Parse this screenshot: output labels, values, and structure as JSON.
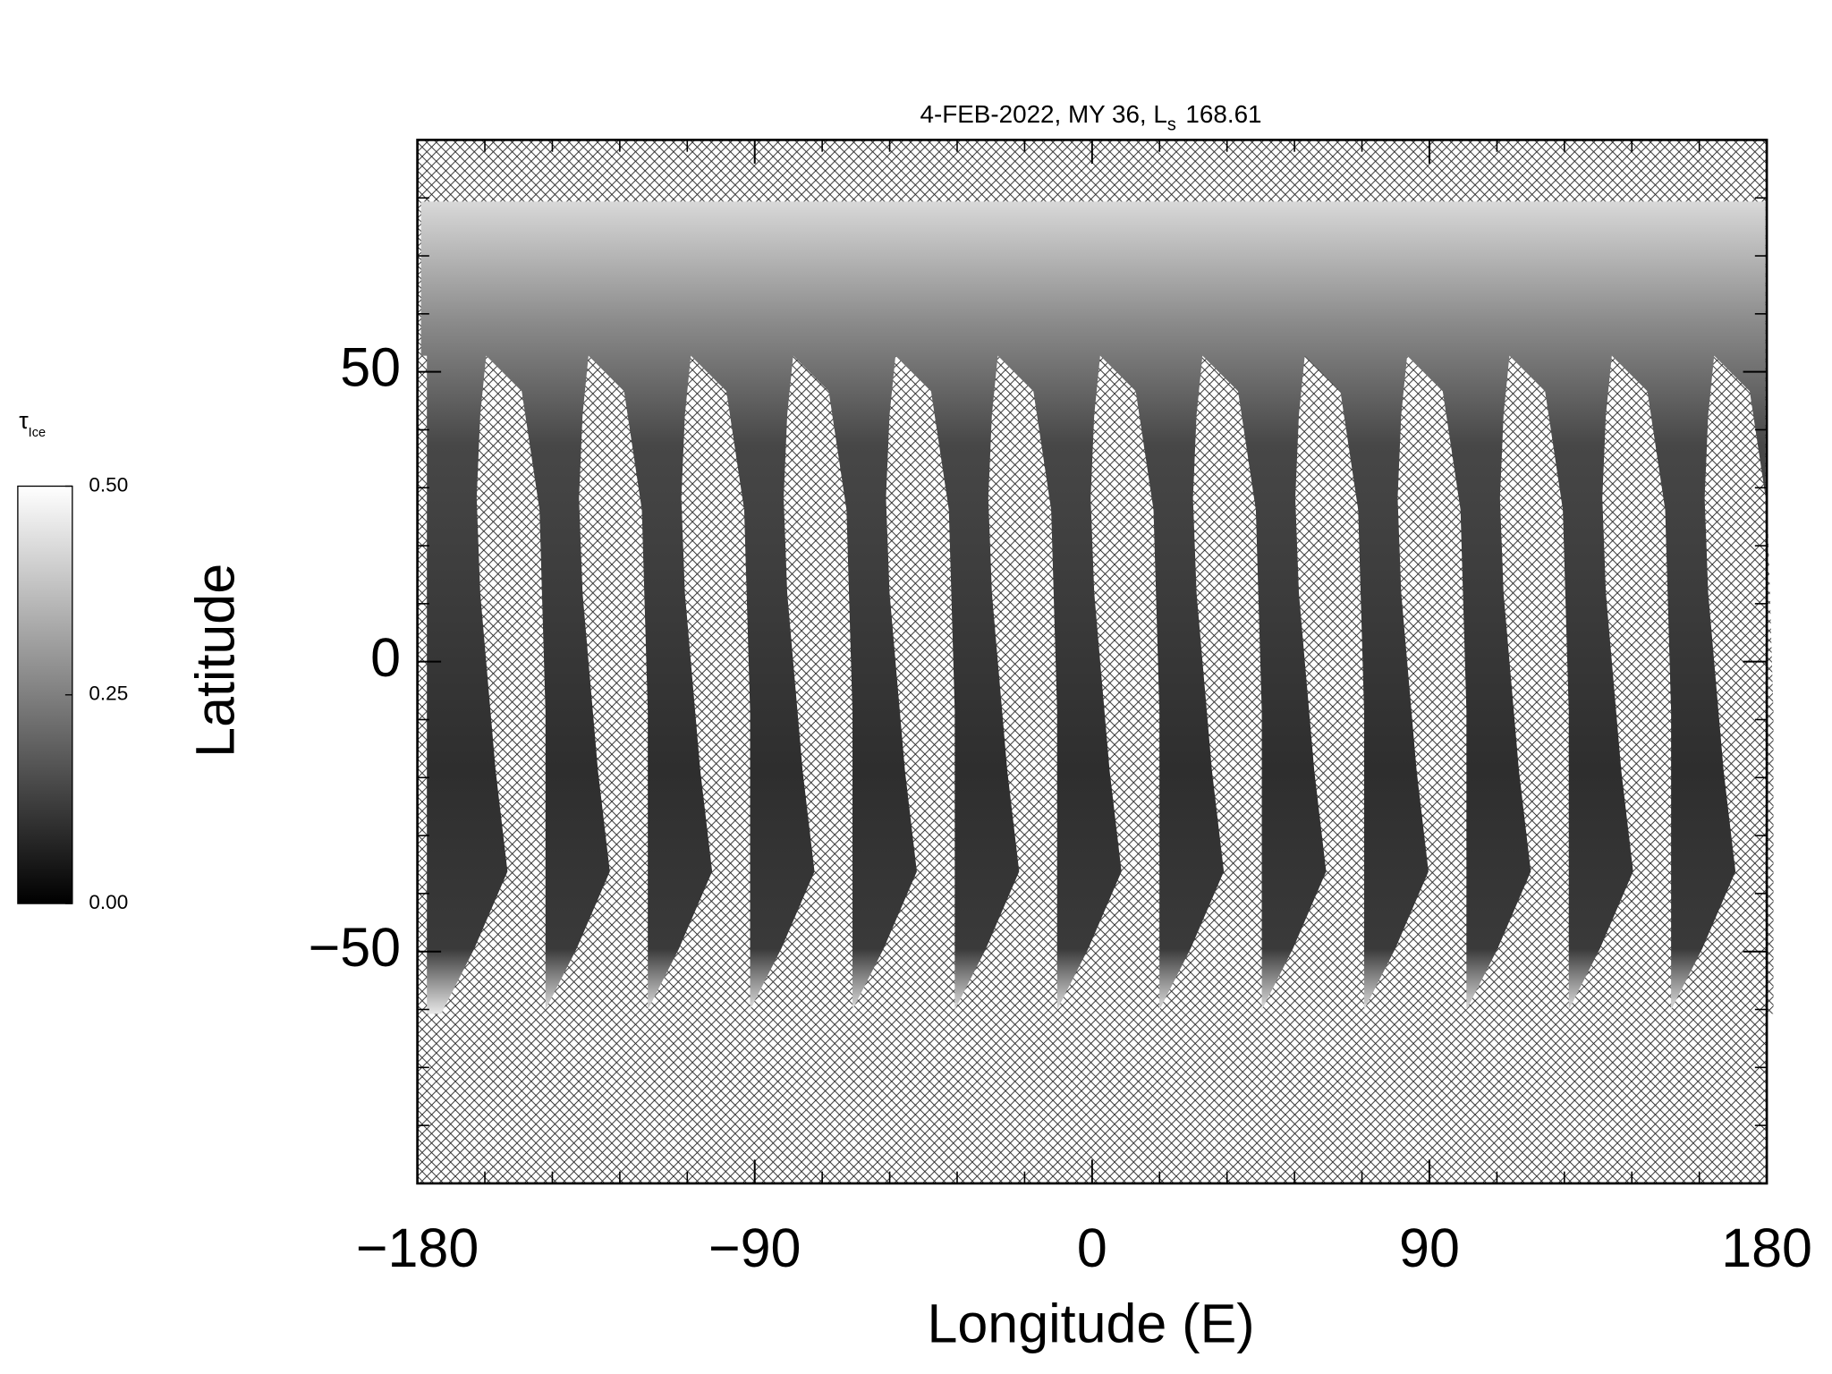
{
  "chart_data": {
    "type": "heatmap",
    "title": "4-FEB-2022, MY 36,  L",
    "title_subscript": "s",
    "title_suffix": "168.61",
    "xlabel": "Longitude (E)",
    "ylabel": "Latitude",
    "xlim": [
      -180,
      180
    ],
    "ylim": [
      -90,
      90
    ],
    "xticks": [
      {
        "value": -180,
        "label": "−180"
      },
      {
        "value": -90,
        "label": "−90"
      },
      0,
      90,
      180
    ],
    "xminorticks": [
      -162,
      -144,
      -126,
      -108,
      -72,
      -54,
      -36,
      -18,
      18,
      36,
      54,
      72,
      108,
      126,
      144,
      162
    ],
    "yticks": [
      {
        "value": -50,
        "label": "−50"
      },
      0,
      50
    ],
    "yminorticks": [
      -80,
      -70,
      -60,
      -40,
      -30,
      -20,
      -10,
      10,
      20,
      30,
      40,
      60,
      70,
      80
    ],
    "colorbar": {
      "label": "τ",
      "label_subscript": "Ice",
      "lim": [
        0,
        0.5
      ],
      "ticks": [
        {
          "value": 0,
          "label": "0.00"
        },
        {
          "value": 0.25,
          "label": "0.25"
        },
        {
          "value": 0.5,
          "label": "0.50"
        }
      ],
      "colors": [
        "#000000",
        "#ffffff"
      ]
    }
  }
}
